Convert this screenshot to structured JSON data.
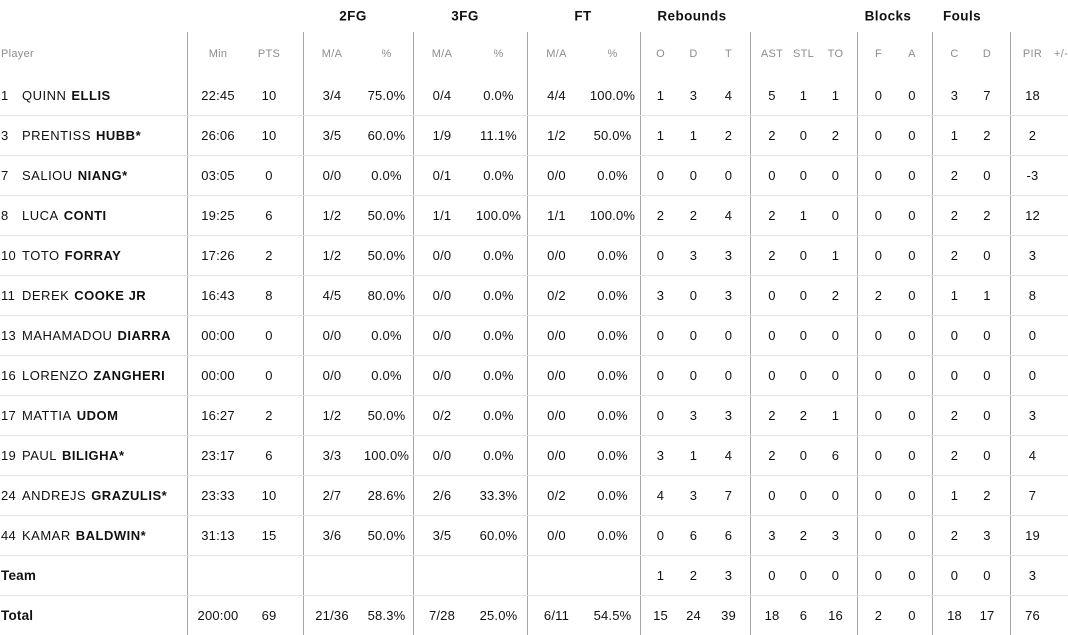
{
  "header": {
    "player": "Player",
    "groups": [
      "2FG",
      "3FG",
      "FT",
      "Rebounds",
      "Blocks",
      "Fouls"
    ],
    "columns": {
      "min": "Min",
      "pts": "PTS",
      "fg2": "M/A",
      "fg2p": "%",
      "fg3": "M/A",
      "fg3p": "%",
      "ft": "M/A",
      "ftp": "%",
      "o": "O",
      "d": "D",
      "t": "T",
      "ast": "AST",
      "stl": "STL",
      "to": "TO",
      "bf": "F",
      "ba": "A",
      "fc": "C",
      "fd": "D",
      "pir": "PIR",
      "pm": "+/-"
    }
  },
  "colors": {
    "text": "#111111",
    "muted_header": "#8d8d8d",
    "vertical_line": "#a6a6a6",
    "horizontal_line": "#e5e5e5"
  },
  "rows": [
    {
      "num": "1",
      "first": "QUINN",
      "last": "ELLIS",
      "min": "22:45",
      "pts": "10",
      "fg2": "3/4",
      "fg2p": "75.0%",
      "fg3": "0/4",
      "fg3p": "0.0%",
      "ft": "4/4",
      "ftp": "100.0%",
      "o": "1",
      "d": "3",
      "t": "4",
      "ast": "5",
      "stl": "1",
      "to": "1",
      "bf": "0",
      "ba": "0",
      "fc": "3",
      "fd": "7",
      "pir": "18"
    },
    {
      "num": "3",
      "first": "PRENTISS",
      "last": "HUBB*",
      "min": "26:06",
      "pts": "10",
      "fg2": "3/5",
      "fg2p": "60.0%",
      "fg3": "1/9",
      "fg3p": "11.1%",
      "ft": "1/2",
      "ftp": "50.0%",
      "o": "1",
      "d": "1",
      "t": "2",
      "ast": "2",
      "stl": "0",
      "to": "2",
      "bf": "0",
      "ba": "0",
      "fc": "1",
      "fd": "2",
      "pir": "2"
    },
    {
      "num": "7",
      "first": "SALIOU",
      "last": "NIANG*",
      "min": "03:05",
      "pts": "0",
      "fg2": "0/0",
      "fg2p": "0.0%",
      "fg3": "0/1",
      "fg3p": "0.0%",
      "ft": "0/0",
      "ftp": "0.0%",
      "o": "0",
      "d": "0",
      "t": "0",
      "ast": "0",
      "stl": "0",
      "to": "0",
      "bf": "0",
      "ba": "0",
      "fc": "2",
      "fd": "0",
      "pir": "-3"
    },
    {
      "num": "8",
      "first": "LUCA",
      "last": "CONTI",
      "min": "19:25",
      "pts": "6",
      "fg2": "1/2",
      "fg2p": "50.0%",
      "fg3": "1/1",
      "fg3p": "100.0%",
      "ft": "1/1",
      "ftp": "100.0%",
      "o": "2",
      "d": "2",
      "t": "4",
      "ast": "2",
      "stl": "1",
      "to": "0",
      "bf": "0",
      "ba": "0",
      "fc": "2",
      "fd": "2",
      "pir": "12"
    },
    {
      "num": "10",
      "first": "TOTO",
      "last": "FORRAY",
      "min": "17:26",
      "pts": "2",
      "fg2": "1/2",
      "fg2p": "50.0%",
      "fg3": "0/0",
      "fg3p": "0.0%",
      "ft": "0/0",
      "ftp": "0.0%",
      "o": "0",
      "d": "3",
      "t": "3",
      "ast": "2",
      "stl": "0",
      "to": "1",
      "bf": "0",
      "ba": "0",
      "fc": "2",
      "fd": "0",
      "pir": "3"
    },
    {
      "num": "11",
      "first": "DEREK",
      "last": "COOKE JR",
      "min": "16:43",
      "pts": "8",
      "fg2": "4/5",
      "fg2p": "80.0%",
      "fg3": "0/0",
      "fg3p": "0.0%",
      "ft": "0/2",
      "ftp": "0.0%",
      "o": "3",
      "d": "0",
      "t": "3",
      "ast": "0",
      "stl": "0",
      "to": "2",
      "bf": "2",
      "ba": "0",
      "fc": "1",
      "fd": "1",
      "pir": "8"
    },
    {
      "num": "13",
      "first": "MAHAMADOU",
      "last": "DIARRA",
      "min": "00:00",
      "pts": "0",
      "fg2": "0/0",
      "fg2p": "0.0%",
      "fg3": "0/0",
      "fg3p": "0.0%",
      "ft": "0/0",
      "ftp": "0.0%",
      "o": "0",
      "d": "0",
      "t": "0",
      "ast": "0",
      "stl": "0",
      "to": "0",
      "bf": "0",
      "ba": "0",
      "fc": "0",
      "fd": "0",
      "pir": "0"
    },
    {
      "num": "16",
      "first": "LORENZO",
      "last": "ZANGHERI",
      "min": "00:00",
      "pts": "0",
      "fg2": "0/0",
      "fg2p": "0.0%",
      "fg3": "0/0",
      "fg3p": "0.0%",
      "ft": "0/0",
      "ftp": "0.0%",
      "o": "0",
      "d": "0",
      "t": "0",
      "ast": "0",
      "stl": "0",
      "to": "0",
      "bf": "0",
      "ba": "0",
      "fc": "0",
      "fd": "0",
      "pir": "0"
    },
    {
      "num": "17",
      "first": "MATTIA",
      "last": "UDOM",
      "min": "16:27",
      "pts": "2",
      "fg2": "1/2",
      "fg2p": "50.0%",
      "fg3": "0/2",
      "fg3p": "0.0%",
      "ft": "0/0",
      "ftp": "0.0%",
      "o": "0",
      "d": "3",
      "t": "3",
      "ast": "2",
      "stl": "2",
      "to": "1",
      "bf": "0",
      "ba": "0",
      "fc": "2",
      "fd": "0",
      "pir": "3"
    },
    {
      "num": "19",
      "first": "PAUL",
      "last": "BILIGHA*",
      "min": "23:17",
      "pts": "6",
      "fg2": "3/3",
      "fg2p": "100.0%",
      "fg3": "0/0",
      "fg3p": "0.0%",
      "ft": "0/0",
      "ftp": "0.0%",
      "o": "3",
      "d": "1",
      "t": "4",
      "ast": "2",
      "stl": "0",
      "to": "6",
      "bf": "0",
      "ba": "0",
      "fc": "2",
      "fd": "0",
      "pir": "4"
    },
    {
      "num": "24",
      "first": "ANDREJS",
      "last": "GRAZULIS*",
      "min": "23:33",
      "pts": "10",
      "fg2": "2/7",
      "fg2p": "28.6%",
      "fg3": "2/6",
      "fg3p": "33.3%",
      "ft": "0/2",
      "ftp": "0.0%",
      "o": "4",
      "d": "3",
      "t": "7",
      "ast": "0",
      "stl": "0",
      "to": "0",
      "bf": "0",
      "ba": "0",
      "fc": "1",
      "fd": "2",
      "pir": "7"
    },
    {
      "num": "44",
      "first": "KAMAR",
      "last": "BALDWIN*",
      "min": "31:13",
      "pts": "15",
      "fg2": "3/6",
      "fg2p": "50.0%",
      "fg3": "3/5",
      "fg3p": "60.0%",
      "ft": "0/0",
      "ftp": "0.0%",
      "o": "0",
      "d": "6",
      "t": "6",
      "ast": "3",
      "stl": "2",
      "to": "3",
      "bf": "0",
      "ba": "0",
      "fc": "2",
      "fd": "3",
      "pir": "19"
    },
    {
      "label": "Team",
      "min": "",
      "pts": "",
      "fg2": "",
      "fg2p": "",
      "fg3": "",
      "fg3p": "",
      "ft": "",
      "ftp": "",
      "o": "1",
      "d": "2",
      "t": "3",
      "ast": "0",
      "stl": "0",
      "to": "0",
      "bf": "0",
      "ba": "0",
      "fc": "0",
      "fd": "0",
      "pir": "3"
    },
    {
      "label": "Total",
      "min": "200:00",
      "pts": "69",
      "fg2": "21/36",
      "fg2p": "58.3%",
      "fg3": "7/28",
      "fg3p": "25.0%",
      "ft": "6/11",
      "ftp": "54.5%",
      "o": "15",
      "d": "24",
      "t": "39",
      "ast": "18",
      "stl": "6",
      "to": "16",
      "bf": "2",
      "ba": "0",
      "fc": "18",
      "fd": "17",
      "pir": "76"
    }
  ]
}
